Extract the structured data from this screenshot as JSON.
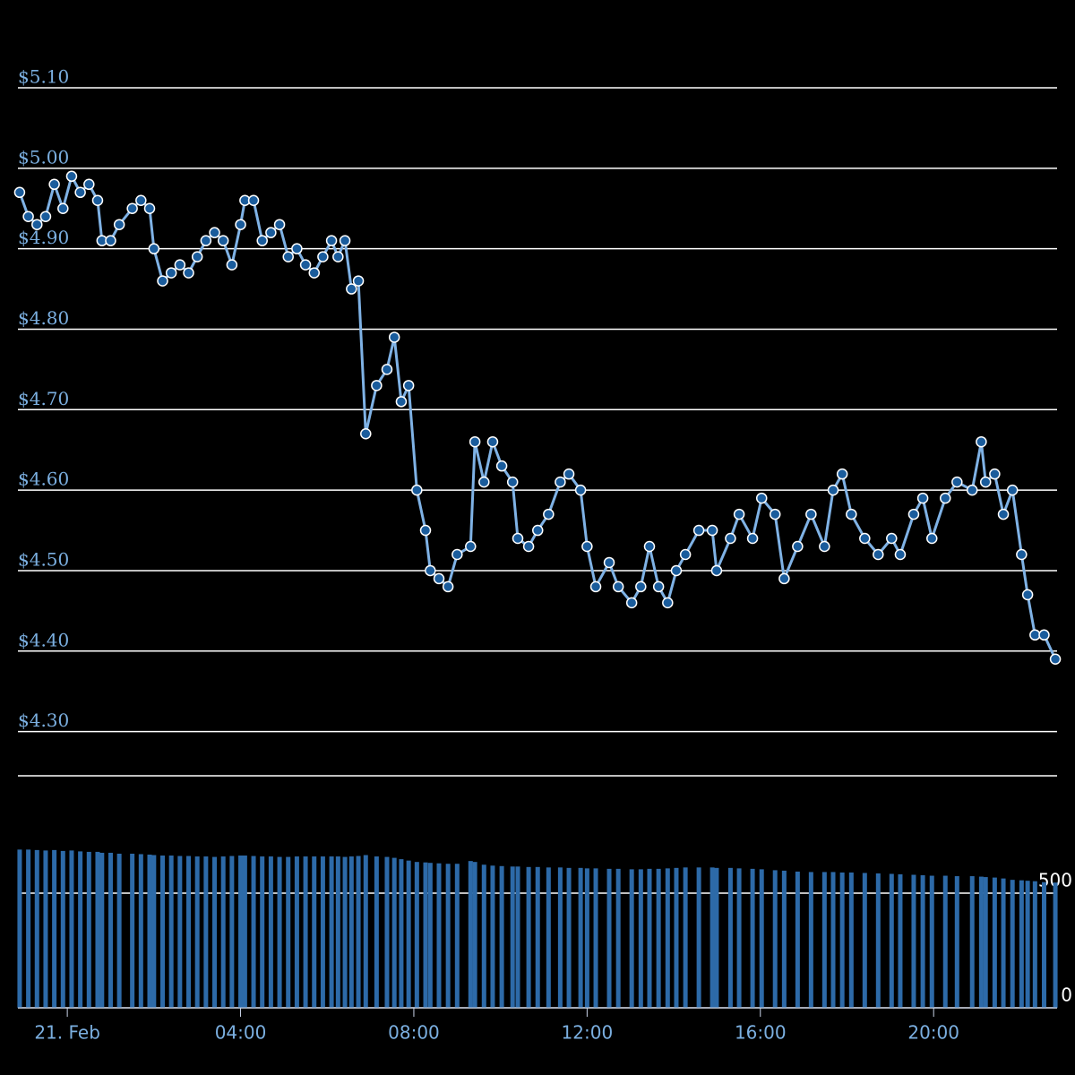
{
  "chart_data": {
    "type": "line",
    "x": [
      -1.1,
      -0.9,
      -0.7,
      -0.5,
      -0.3,
      -0.1,
      0.1,
      0.3,
      0.5,
      0.7,
      0.8,
      1.0,
      1.2,
      1.5,
      1.7,
      1.9,
      2.0,
      2.2,
      2.4,
      2.6,
      2.8,
      3.0,
      3.2,
      3.4,
      3.6,
      3.8,
      4.0,
      4.1,
      4.3,
      4.5,
      4.7,
      4.9,
      5.1,
      5.3,
      5.5,
      5.7,
      5.9,
      6.1,
      6.25,
      6.41,
      6.56,
      6.72,
      6.89,
      7.14,
      7.38,
      7.55,
      7.71,
      7.88,
      8.07,
      8.27,
      8.38,
      8.58,
      8.79,
      9.0,
      9.31,
      9.41,
      9.62,
      9.82,
      10.03,
      10.28,
      10.4,
      10.65,
      10.86,
      11.11,
      11.38,
      11.58,
      11.85,
      12.0,
      12.2,
      12.51,
      12.72,
      13.03,
      13.24,
      13.44,
      13.65,
      13.86,
      14.06,
      14.27,
      14.58,
      14.89,
      14.99,
      15.31,
      15.51,
      15.82,
      16.03,
      16.34,
      16.55,
      16.86,
      17.17,
      17.48,
      17.68,
      17.89,
      18.1,
      18.41,
      18.72,
      19.03,
      19.23,
      19.54,
      19.75,
      19.96,
      20.27,
      20.54,
      20.89,
      21.1,
      21.2,
      21.41,
      21.61,
      21.82,
      22.03,
      22.17,
      22.34,
      22.55,
      22.81
    ],
    "values": [
      4.97,
      4.94,
      4.93,
      4.94,
      4.98,
      4.95,
      4.99,
      4.97,
      4.98,
      4.96,
      4.91,
      4.91,
      4.93,
      4.95,
      4.96,
      4.95,
      4.9,
      4.86,
      4.87,
      4.88,
      4.87,
      4.89,
      4.91,
      4.92,
      4.91,
      4.88,
      4.93,
      4.96,
      4.96,
      4.91,
      4.92,
      4.93,
      4.89,
      4.9,
      4.88,
      4.87,
      4.89,
      4.91,
      4.89,
      4.91,
      4.85,
      4.86,
      4.67,
      4.73,
      4.75,
      4.79,
      4.71,
      4.73,
      4.6,
      4.55,
      4.5,
      4.49,
      4.48,
      4.52,
      4.53,
      4.66,
      4.61,
      4.66,
      4.63,
      4.61,
      4.54,
      4.53,
      4.55,
      4.57,
      4.61,
      4.62,
      4.6,
      4.53,
      4.48,
      4.51,
      4.48,
      4.46,
      4.48,
      4.53,
      4.48,
      4.46,
      4.5,
      4.52,
      4.55,
      4.55,
      4.5,
      4.54,
      4.57,
      4.54,
      4.59,
      4.57,
      4.49,
      4.53,
      4.57,
      4.53,
      4.6,
      4.62,
      4.57,
      4.54,
      4.52,
      4.54,
      4.52,
      4.57,
      4.59,
      4.54,
      4.59,
      4.61,
      4.6,
      4.66,
      4.61,
      4.62,
      4.57,
      4.6,
      4.52,
      4.47,
      4.42,
      4.42,
      4.39
    ],
    "volume": [
      690,
      690,
      688,
      686,
      688,
      684,
      686,
      682,
      680,
      680,
      676,
      676,
      672,
      672,
      670,
      668,
      666,
      664,
      664,
      662,
      662,
      660,
      660,
      658,
      660,
      662,
      664,
      664,
      662,
      660,
      660,
      658,
      658,
      660,
      660,
      660,
      660,
      660,
      660,
      658,
      660,
      662,
      666,
      660,
      658,
      654,
      648,
      642,
      636,
      634,
      632,
      630,
      628,
      628,
      640,
      636,
      624,
      620,
      618,
      616,
      616,
      614,
      614,
      612,
      612,
      610,
      610,
      608,
      608,
      606,
      606,
      604,
      604,
      606,
      606,
      608,
      610,
      612,
      612,
      612,
      610,
      610,
      608,
      606,
      604,
      600,
      598,
      594,
      592,
      592,
      592,
      590,
      590,
      588,
      586,
      584,
      582,
      580,
      578,
      576,
      576,
      574,
      574,
      572,
      570,
      568,
      564,
      558,
      556,
      554,
      552,
      548,
      546
    ],
    "color": "#7fb2e5",
    "marker_color": "#1a5c9c",
    "volume_color": "#2d6aa8",
    "xlim": [
      -1.14,
      22.85
    ],
    "xticks": [
      {
        "value": 0,
        "label": "21. Feb"
      },
      {
        "value": 4,
        "label": "04:00"
      },
      {
        "value": 8,
        "label": "08:00"
      },
      {
        "value": 12,
        "label": "12:00"
      },
      {
        "value": 16,
        "label": "16:00"
      },
      {
        "value": 20,
        "label": "20:00"
      }
    ],
    "ylim": [
      4.245,
      5.1
    ],
    "yticks": [
      {
        "value": 4.3,
        "label": "$4.30"
      },
      {
        "value": 4.4,
        "label": "$4.40"
      },
      {
        "value": 4.5,
        "label": "$4.50"
      },
      {
        "value": 4.6,
        "label": "$4.60"
      },
      {
        "value": 4.7,
        "label": "$4.70"
      },
      {
        "value": 4.8,
        "label": "$4.80"
      },
      {
        "value": 4.9,
        "label": "$4.90"
      },
      {
        "value": 5.0,
        "label": "$5.00"
      },
      {
        "value": 5.1,
        "label": "$5.10"
      }
    ],
    "volume_ylim": [
      0,
      957
    ],
    "volume_yticks": [
      0,
      500
    ],
    "grid": true
  }
}
